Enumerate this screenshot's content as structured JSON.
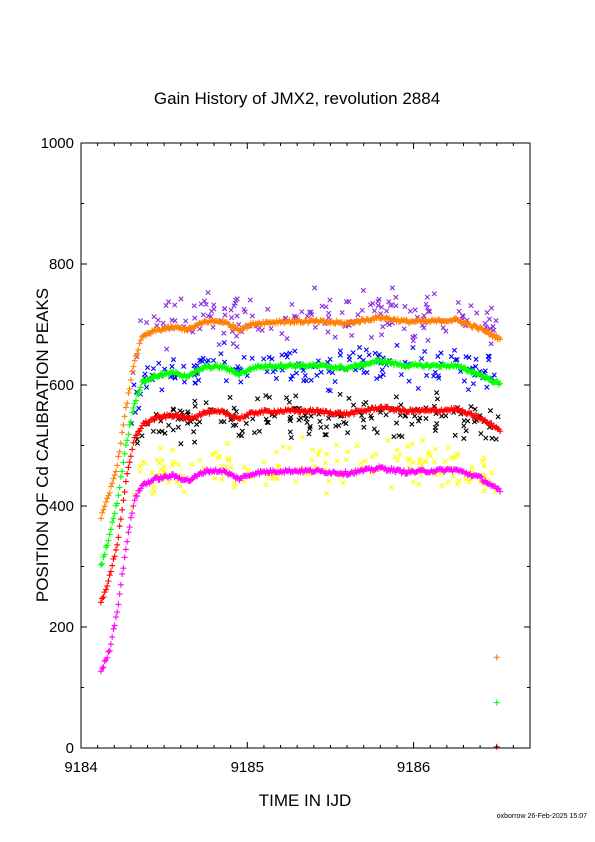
{
  "chart_data": {
    "type": "scatter",
    "title": "Gain History of JMX2, revolution 2884",
    "xlabel": "TIME IN IJD",
    "ylabel": "POSITION OF Cd CALIBRATION PEAKS",
    "xlim": [
      9184,
      9186.7
    ],
    "ylim": [
      0,
      1000
    ],
    "xticks": [
      9184,
      9185,
      9186
    ],
    "yticks": [
      0,
      200,
      400,
      600,
      800,
      1000
    ],
    "grid": false,
    "footer": "oxborrow 26-Feb-2025 15:07",
    "smooth_series": [
      {
        "color": "#ff7f00",
        "marker": "+",
        "points": [
          [
            9184.12,
            380
          ],
          [
            9184.17,
            420
          ],
          [
            9184.22,
            470
          ],
          [
            9184.27,
            560
          ],
          [
            9184.32,
            640
          ],
          [
            9184.37,
            680
          ],
          [
            9184.45,
            690
          ],
          [
            9184.55,
            695
          ],
          [
            9184.65,
            692
          ],
          [
            9184.75,
            705
          ],
          [
            9184.85,
            705
          ],
          [
            9184.95,
            692
          ],
          [
            9185.05,
            702
          ],
          [
            9185.2,
            705
          ],
          [
            9185.4,
            705
          ],
          [
            9185.6,
            702
          ],
          [
            9185.8,
            712
          ],
          [
            9185.95,
            705
          ],
          [
            9186.1,
            705
          ],
          [
            9186.25,
            708
          ],
          [
            9186.4,
            693
          ],
          [
            9186.52,
            676
          ]
        ]
      },
      {
        "color": "#00ff00",
        "marker": "+",
        "points": [
          [
            9184.12,
            300
          ],
          [
            9184.17,
            350
          ],
          [
            9184.22,
            410
          ],
          [
            9184.27,
            500
          ],
          [
            9184.32,
            570
          ],
          [
            9184.37,
            605
          ],
          [
            9184.45,
            615
          ],
          [
            9184.55,
            620
          ],
          [
            9184.65,
            615
          ],
          [
            9184.75,
            630
          ],
          [
            9184.85,
            630
          ],
          [
            9184.95,
            618
          ],
          [
            9185.05,
            630
          ],
          [
            9185.2,
            632
          ],
          [
            9185.4,
            632
          ],
          [
            9185.6,
            628
          ],
          [
            9185.8,
            640
          ],
          [
            9185.95,
            632
          ],
          [
            9186.1,
            632
          ],
          [
            9186.25,
            632
          ],
          [
            9186.4,
            617
          ],
          [
            9186.52,
            601
          ]
        ]
      },
      {
        "color": "#ff0000",
        "marker": "+",
        "points": [
          [
            9184.12,
            240
          ],
          [
            9184.17,
            280
          ],
          [
            9184.22,
            340
          ],
          [
            9184.27,
            440
          ],
          [
            9184.32,
            510
          ],
          [
            9184.37,
            535
          ],
          [
            9184.45,
            545
          ],
          [
            9184.55,
            550
          ],
          [
            9184.65,
            545
          ],
          [
            9184.75,
            555
          ],
          [
            9184.85,
            555
          ],
          [
            9184.95,
            545
          ],
          [
            9185.05,
            555
          ],
          [
            9185.2,
            557
          ],
          [
            9185.4,
            557
          ],
          [
            9185.6,
            552
          ],
          [
            9185.8,
            563
          ],
          [
            9185.95,
            557
          ],
          [
            9186.1,
            557
          ],
          [
            9186.25,
            560
          ],
          [
            9186.4,
            545
          ],
          [
            9186.52,
            526
          ]
        ]
      },
      {
        "color": "#ff00ff",
        "marker": "+",
        "points": [
          [
            9184.12,
            125
          ],
          [
            9184.17,
            160
          ],
          [
            9184.22,
            230
          ],
          [
            9184.27,
            330
          ],
          [
            9184.32,
            410
          ],
          [
            9184.37,
            435
          ],
          [
            9184.45,
            445
          ],
          [
            9184.55,
            450
          ],
          [
            9184.65,
            442
          ],
          [
            9184.75,
            458
          ],
          [
            9184.85,
            458
          ],
          [
            9184.95,
            445
          ],
          [
            9185.05,
            455
          ],
          [
            9185.2,
            458
          ],
          [
            9185.4,
            458
          ],
          [
            9185.6,
            454
          ],
          [
            9185.8,
            463
          ],
          [
            9185.95,
            456
          ],
          [
            9186.1,
            458
          ],
          [
            9186.25,
            460
          ],
          [
            9186.4,
            447
          ],
          [
            9186.52,
            424
          ]
        ]
      }
    ],
    "scatter_series": [
      {
        "color": "#8a2be2",
        "marker": "x",
        "x_range": [
          9184.3,
          9186.52
        ],
        "center": 720,
        "spread": 30
      },
      {
        "color": "#0000ff",
        "marker": "x",
        "x_range": [
          9184.3,
          9186.52
        ],
        "center": 640,
        "spread": 25
      },
      {
        "color": "#000000",
        "marker": "x",
        "x_range": [
          9184.3,
          9186.52
        ],
        "center": 555,
        "spread": 25
      },
      {
        "color": "#ffff00",
        "marker": "x",
        "x_range": [
          9184.3,
          9186.52
        ],
        "center": 470,
        "spread": 30
      }
    ],
    "marker_points": [
      {
        "color": "#ff7f00",
        "marker": "+",
        "x": 9186.5,
        "y": 150
      },
      {
        "color": "#00ff00",
        "marker": "+",
        "x": 9186.5,
        "y": 75
      },
      {
        "color": "#ff0000",
        "marker": "+",
        "x": 9186.5,
        "y": 2
      }
    ]
  }
}
